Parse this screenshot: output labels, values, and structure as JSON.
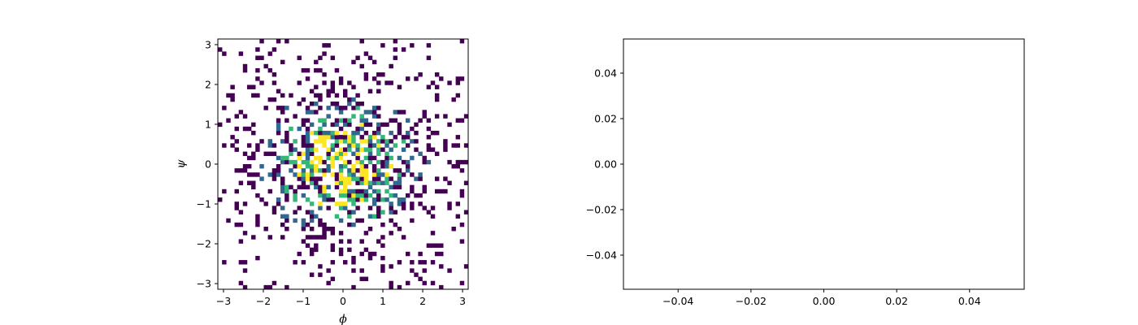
{
  "chart_data": [
    {
      "type": "heatmap",
      "title": "",
      "xlabel": "ϕ",
      "ylabel": "ψ",
      "xlim": [
        -3.14159,
        3.14159
      ],
      "ylim": [
        -3.14159,
        3.14159
      ],
      "xticks": [
        -3,
        -2,
        -1,
        0,
        1,
        2,
        3
      ],
      "yticks": [
        -3,
        -2,
        -1,
        0,
        1,
        2,
        3
      ],
      "bins": [
        60,
        60
      ],
      "colormap": "viridis",
      "empty_bins": "white",
      "description": "2D histogram of dihedral angles; counts concentrated near (0, 0) and sparse toward the edges"
    },
    {
      "type": "line",
      "title": "",
      "xlabel": "",
      "ylabel": "",
      "series": [],
      "xlim": [
        -0.055,
        0.055
      ],
      "ylim": [
        -0.055,
        0.055
      ],
      "xticks": [
        -0.04,
        -0.02,
        0.0,
        0.02,
        0.04
      ],
      "yticks": [
        -0.04,
        -0.02,
        0.0,
        0.02,
        0.04
      ],
      "xtick_labels": [
        "−0.04",
        "−0.02",
        "0.00",
        "0.02",
        "0.04"
      ],
      "ytick_labels": [
        "−0.04",
        "−0.02",
        "0.00",
        "0.02",
        "0.04"
      ]
    }
  ],
  "colors": {
    "viridis": [
      "#440154",
      "#31688e",
      "#35b779",
      "#fde725"
    ]
  }
}
